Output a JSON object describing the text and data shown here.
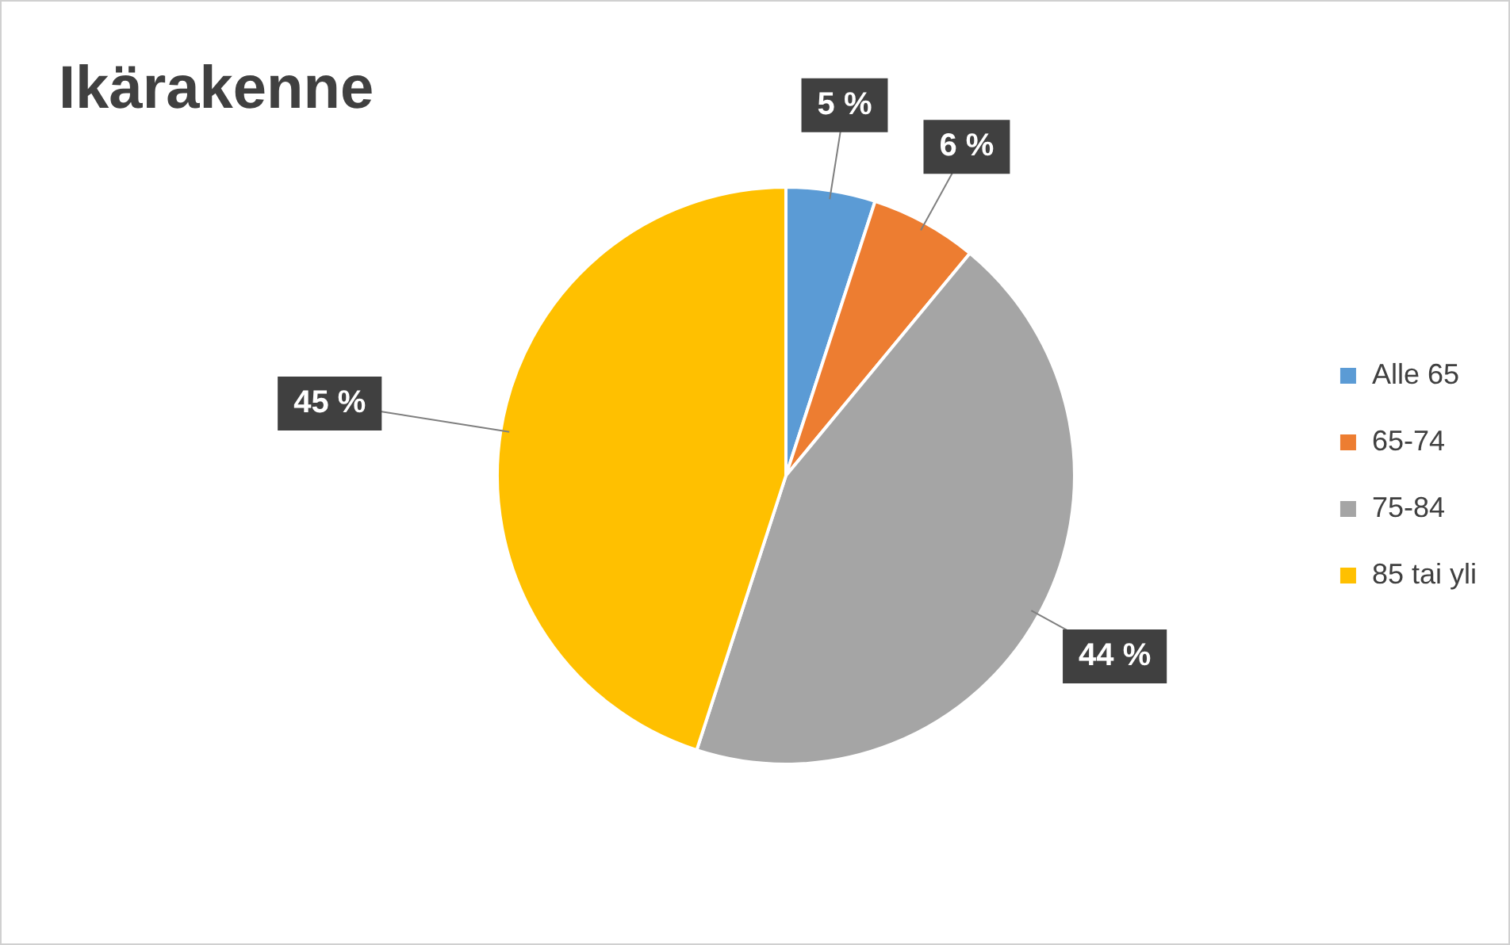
{
  "chart_data": {
    "type": "pie",
    "title": "Ikärakenne",
    "categories": [
      "Alle 65",
      "65-74",
      "75-84",
      "85 tai yli"
    ],
    "values": [
      5,
      6,
      44,
      45
    ],
    "colors": [
      "#5b9bd5",
      "#ed7d31",
      "#a5a5a5",
      "#ffc000"
    ],
    "value_labels": [
      "5 %",
      "6 %",
      "44 %",
      "45 %"
    ],
    "legend": "right"
  }
}
